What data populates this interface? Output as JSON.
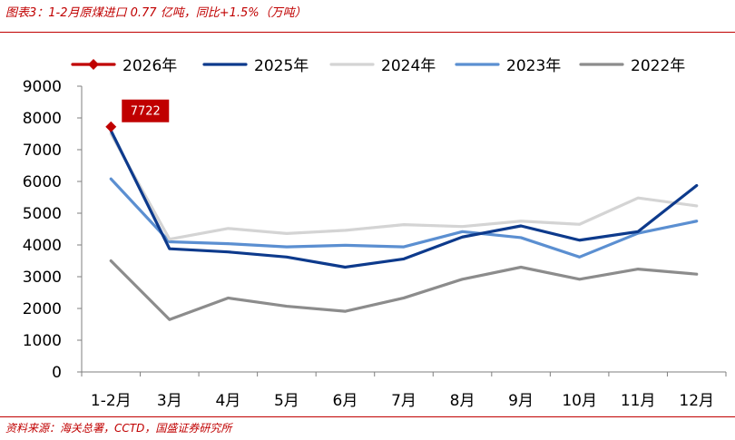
{
  "figure": {
    "title": "图表3：1-2月原煤进口 0.77 亿吨，同比+1.5%（万吨）",
    "source": "资料来源：海关总署，CCTD，国盛证券研究所"
  },
  "chart_data": {
    "type": "line",
    "categories": [
      "1-2月",
      "3月",
      "4月",
      "5月",
      "6月",
      "7月",
      "8月",
      "9月",
      "10月",
      "11月",
      "12月"
    ],
    "ylim": [
      0,
      9000
    ],
    "yticks": [
      0,
      1000,
      2000,
      3000,
      4000,
      5000,
      6000,
      7000,
      8000,
      9000
    ],
    "grid": false,
    "legend_position": "top",
    "series": [
      {
        "name": "2026年",
        "color": "#c00000",
        "marker": "diamond",
        "values": [
          7722,
          null,
          null,
          null,
          null,
          null,
          null,
          null,
          null,
          null,
          null
        ]
      },
      {
        "name": "2025年",
        "color": "#0d3a8c",
        "values": [
          7600,
          3880,
          3780,
          3620,
          3300,
          3560,
          4250,
          4600,
          4150,
          4420,
          5870
        ]
      },
      {
        "name": "2024年",
        "color": "#d4d4d4",
        "values": [
          7500,
          4180,
          4520,
          4360,
          4460,
          4640,
          4580,
          4750,
          4650,
          5480,
          5230
        ]
      },
      {
        "name": "2023年",
        "color": "#5b8fd1",
        "values": [
          6080,
          4100,
          4040,
          3940,
          3990,
          3940,
          4420,
          4230,
          3620,
          4370,
          4750
        ]
      },
      {
        "name": "2022年",
        "color": "#8c8c8c",
        "values": [
          3500,
          1650,
          2330,
          2070,
          1910,
          2330,
          2920,
          3300,
          2920,
          3240,
          3080
        ]
      }
    ],
    "data_label": {
      "series": "2026年",
      "category": "1-2月",
      "text": "7722"
    }
  }
}
